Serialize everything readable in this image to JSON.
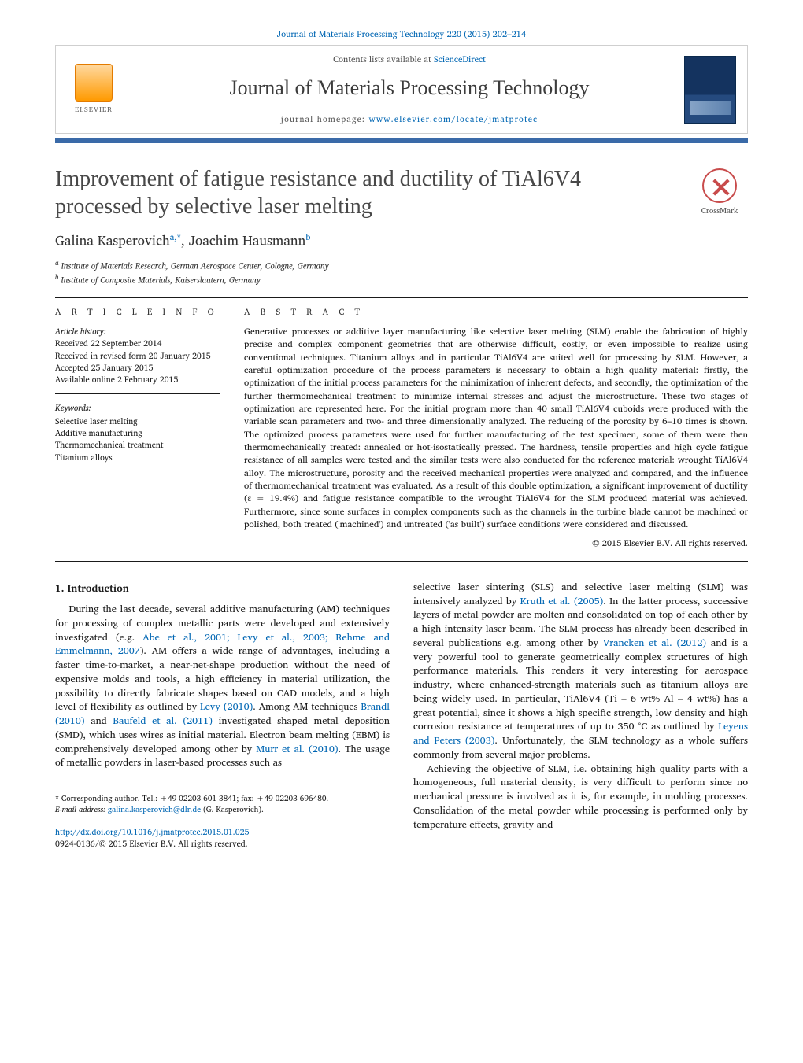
{
  "header": {
    "citation": "Journal of Materials Processing Technology 220 (2015) 202–214",
    "contents_label": "Contents lists available at ",
    "contents_link": "ScienceDirect",
    "journal_name": "Journal of Materials Processing Technology",
    "homepage_label": "journal homepage: ",
    "homepage_url": "www.elsevier.com/locate/jmatprotec",
    "publisher_label": "ELSEVIER",
    "crossmark_label": "CrossMark"
  },
  "article": {
    "title": "Improvement of fatigue resistance and ductility of TiAl6V4 processed by selective laser melting",
    "authors_html": "Galina Kasperovich",
    "author_a_sup": "a,",
    "author_a_star": "*",
    "author_sep": ", ",
    "author_b": "Joachim Hausmann",
    "author_b_sup": "b",
    "affiliations": {
      "a": "Institute of Materials Research, German Aerospace Center, Cologne, Germany",
      "b": "Institute of Composite Materials, Kaiserslautern, Germany"
    }
  },
  "info": {
    "article_info_label": "A R T I C L E   I N F O",
    "history_label": "Article history:",
    "received": "Received 22 September 2014",
    "revised": "Received in revised form 20 January 2015",
    "accepted": "Accepted 25 January 2015",
    "online": "Available online 2 February 2015",
    "keywords_label": "Keywords:",
    "keywords": [
      "Selective laser melting",
      "Additive manufacturing",
      "Thermomechanical treatment",
      "Titanium alloys"
    ]
  },
  "abstract": {
    "label": "A B S T R A C T",
    "text": "Generative processes or additive layer manufacturing like selective laser melting (SLM) enable the fabrication of highly precise and complex component geometries that are otherwise difficult, costly, or even impossible to realize using conventional techniques. Titanium alloys and in particular TiAl6V4 are suited well for processing by SLM. However, a careful optimization procedure of the process parameters is necessary to obtain a high quality material: firstly, the optimization of the initial process parameters for the minimization of inherent defects, and secondly, the optimization of the further thermomechanical treatment to minimize internal stresses and adjust the microstructure. These two stages of optimization are represented here. For the initial program more than 40 small TiAl6V4 cuboids were produced with the variable scan parameters and two- and three dimensionally analyzed. The reducing of the porosity by 6–10 times is shown. The optimized process parameters were used for further manufacturing of the test specimen, some of them were then thermomechanically treated: annealed or hot-isostatically pressed. The hardness, tensile properties and high cycle fatigue resistance of all samples were tested and the similar tests were also conducted for the reference material: wrought TiAl6V4 alloy. The microstructure, porosity and the received mechanical properties were analyzed and compared, and the influence of thermomechanical treatment was evaluated. As a result of this double optimization, a significant improvement of ductility (ε = 19.4%) and fatigue resistance compatible to the wrought TiAl6V4 for the SLM produced material was achieved. Furthermore, since some surfaces in complex components such as the channels in the turbine blade cannot be machined or polished, both treated ('machined') and untreated ('as built') surface conditions were considered and discussed.",
    "copyright": "© 2015 Elsevier B.V. All rights reserved."
  },
  "body": {
    "intro_heading": "1.  Introduction",
    "col1_p1_a": "During the last decade, several additive manufacturing (AM) techniques for processing of complex metallic parts were developed and extensively investigated (e.g. ",
    "col1_ref1": "Abe et al., 2001; Levy et al., 2003; Rehme and Emmelmann, 2007",
    "col1_p1_b": "). AM offers a wide range of advantages, including a faster time-to-market, a near-net-shape production without the need of expensive molds and tools, a high efficiency in material utilization, the possibility to directly fabricate shapes based on CAD models, and a high level of flexibility as outlined by ",
    "col1_ref2": "Levy (2010)",
    "col1_p1_c": ". Among AM techniques ",
    "col1_ref3": "Brandl (2010)",
    "col1_p1_d": " and ",
    "col1_ref4": "Baufeld et al. (2011)",
    "col1_p1_e": " investigated shaped metal deposition (SMD), which uses wires as initial material. Electron beam melting (EBM) is comprehensively developed among other by ",
    "col1_ref5": "Murr et al. (2010)",
    "col1_p1_f": ". The usage of metallic powders in laser-based processes such as",
    "col2_p1_a": "selective laser sintering (SLS) and selective laser melting (SLM) was intensively analyzed by ",
    "col2_ref1": "Kruth et al. (2005)",
    "col2_p1_b": ". In the latter process, successive layers of metal powder are molten and consolidated on top of each other by a high intensity laser beam. The SLM process has already been described in several publications e.g. among other by ",
    "col2_ref2": "Vrancken et al. (2012)",
    "col2_p1_c": " and is a very powerful tool to generate geometrically complex structures of high performance materials. This renders it very interesting for aerospace industry, where enhanced-strength materials such as titanium alloys are being widely used. In particular, TiAl6V4 (Ti – 6 wt% Al – 4 wt%) has a great potential, since it shows a high specific strength, low density and high corrosion resistance at temperatures of up to 350 °C as outlined by ",
    "col2_ref3": "Leyens and Peters (2003)",
    "col2_p1_d": ". Unfortunately, the SLM technology as a whole suffers commonly from several major problems.",
    "col2_p2": "Achieving the objective of SLM, i.e. obtaining high quality parts with a homogeneous, full material density, is very difficult to perform since no mechanical pressure is involved as it is, for example, in molding processes. Consolidation of the metal powder while processing is performed only by temperature effects, gravity and"
  },
  "footer": {
    "corr_label": "* Corresponding author. Tel.: +49 02203 601 3841; fax: +49 02203 696480.",
    "email_label": "E-mail address: ",
    "email": "galina.kasperovich@dlr.de",
    "email_who": " (G. Kasperovich).",
    "doi": "http://dx.doi.org/10.1016/j.jmatprotec.2015.01.025",
    "issn_line": "0924-0136/© 2015 Elsevier B.V. All rights reserved."
  },
  "colors": {
    "link": "#0066b3",
    "accent_bar": "#3a6aa8",
    "text": "#1a1a1a",
    "muted": "#555555"
  }
}
